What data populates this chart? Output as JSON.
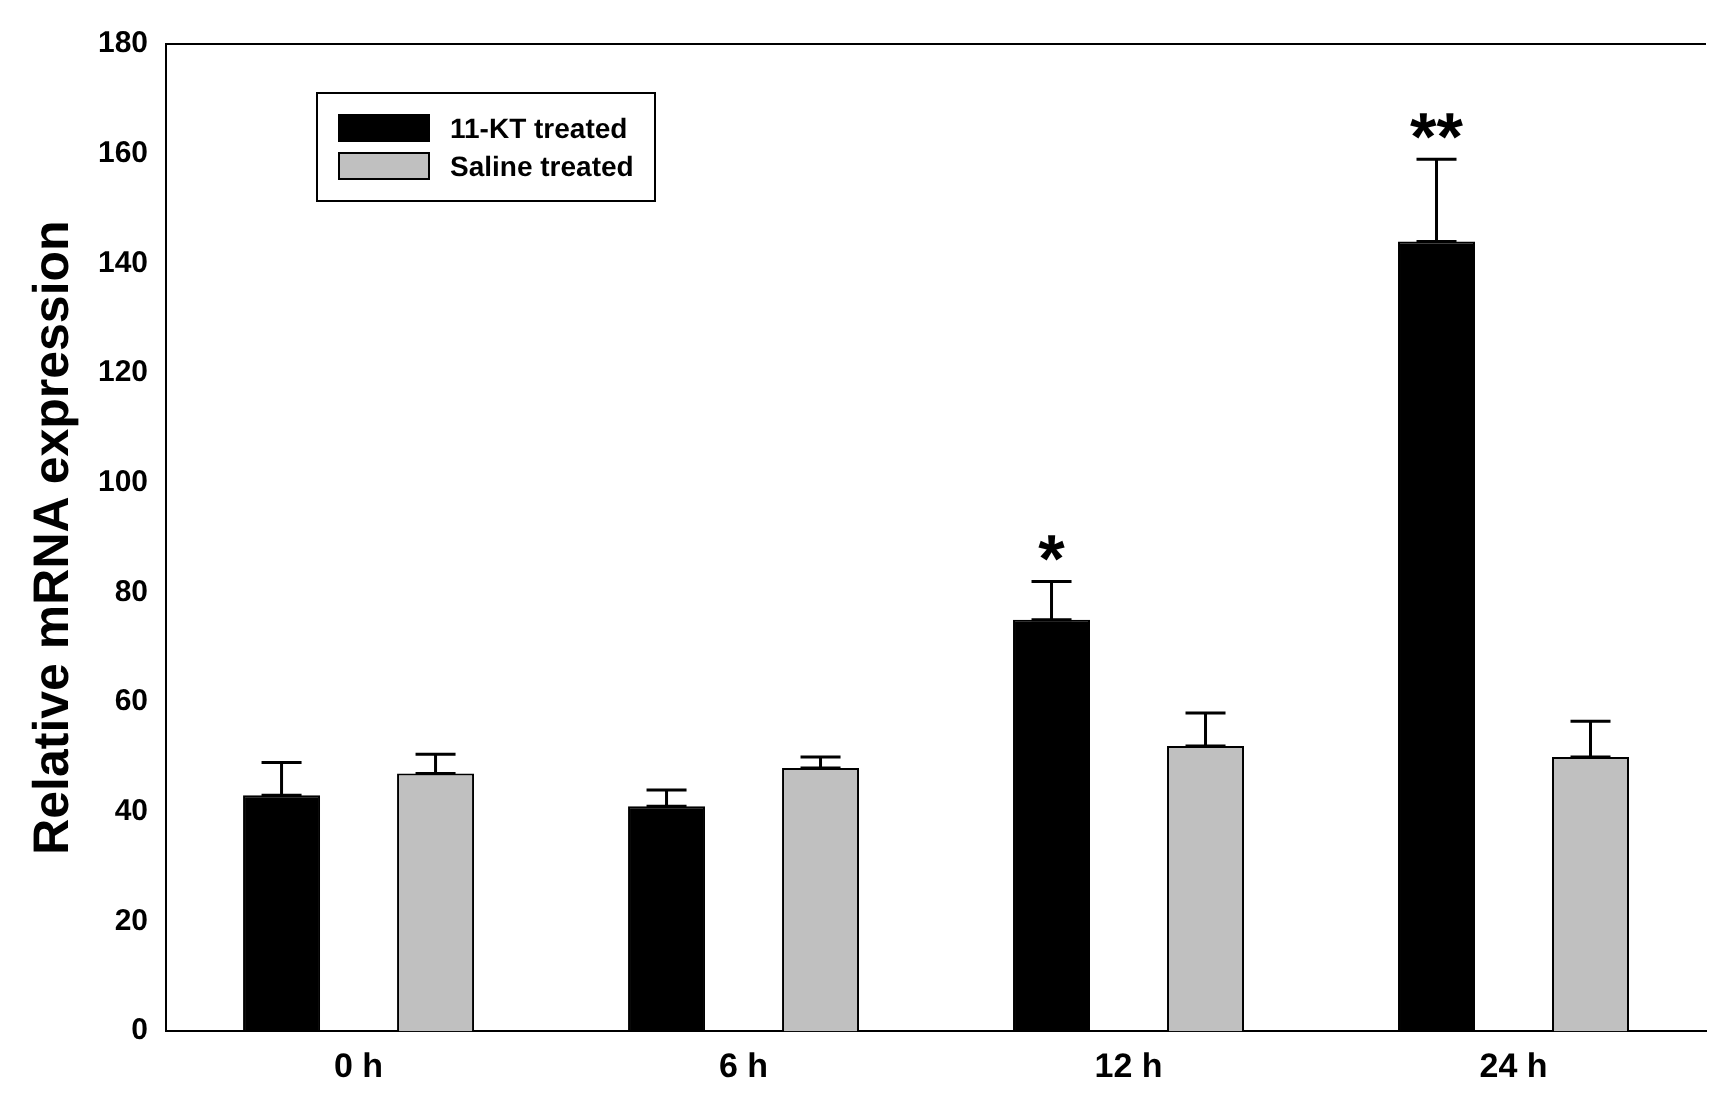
{
  "chart_data": {
    "type": "bar",
    "ylabel": "Relative mRNA expression",
    "categories": [
      "0 h",
      "6 h",
      "12 h",
      "24 h"
    ],
    "series": [
      {
        "name": "11-KT treated",
        "color": "#000000",
        "values": [
          43,
          41,
          75,
          144
        ],
        "errors": [
          [
            43,
            49
          ],
          [
            41,
            44
          ],
          [
            75,
            82
          ],
          [
            144,
            159
          ]
        ],
        "value_labels": [
          null,
          null,
          "*",
          "**"
        ]
      },
      {
        "name": "Saline treated",
        "color": "#c0c0c0",
        "values": [
          47,
          48,
          52,
          50
        ],
        "errors": [
          [
            47,
            50.5
          ],
          [
            48,
            50
          ],
          [
            52,
            58
          ],
          [
            50,
            56.5
          ]
        ]
      }
    ],
    "ylim": [
      0,
      180
    ],
    "yticks": [
      0,
      20,
      40,
      60,
      80,
      100,
      120,
      140,
      160,
      180
    ],
    "grid": false,
    "legend": "top left"
  }
}
